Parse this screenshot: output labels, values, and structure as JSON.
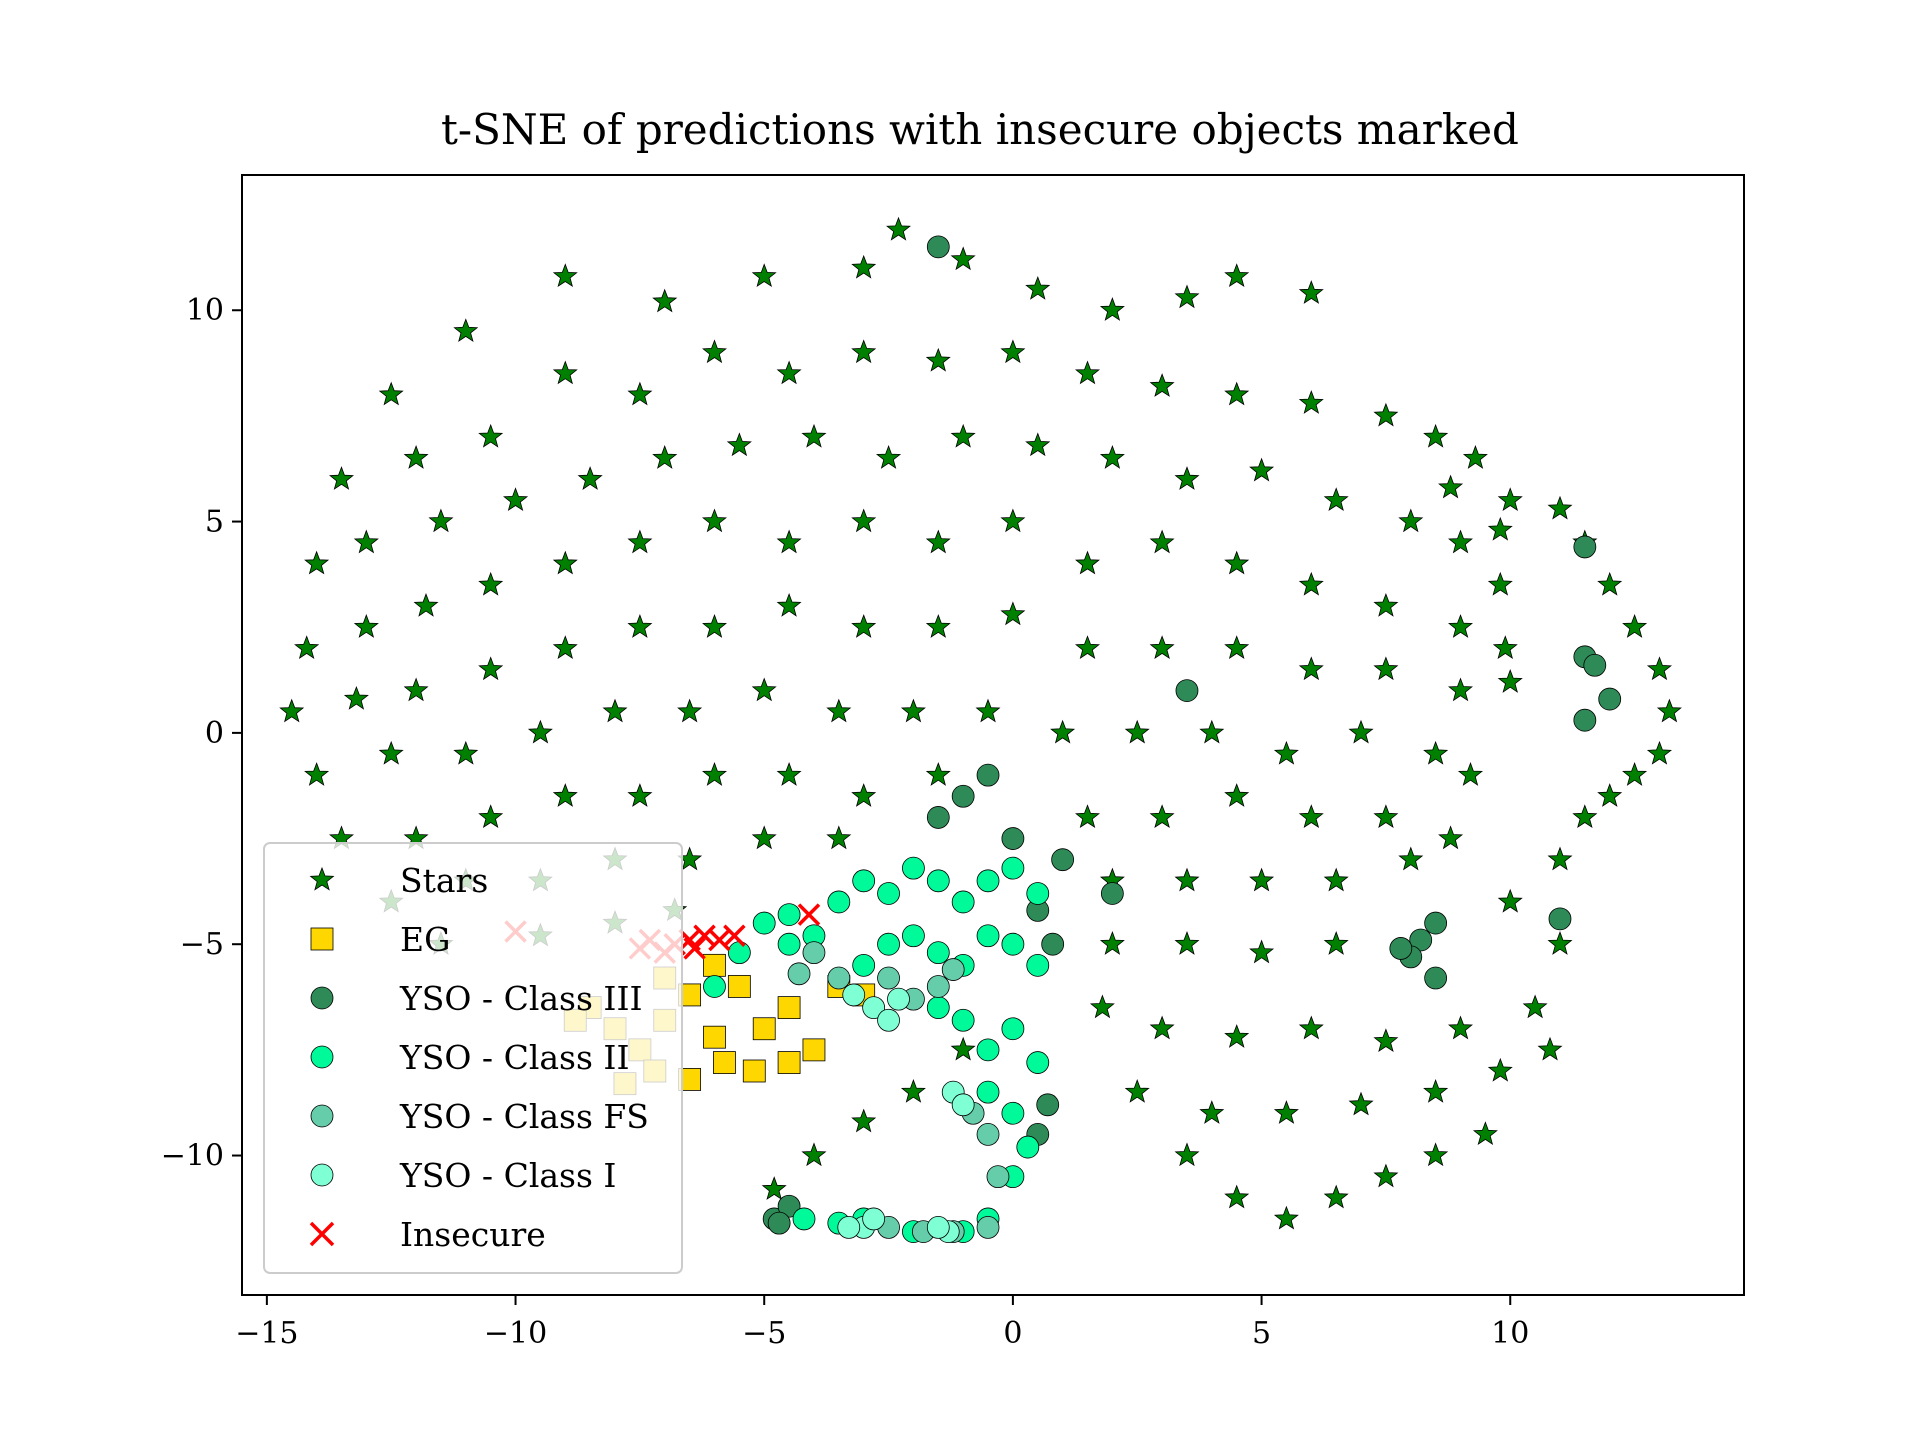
{
  "chart_data": {
    "type": "scatter",
    "title": "t-SNE of predictions with insecure objects marked",
    "xlabel": "",
    "ylabel": "",
    "xlim": [
      -15.5,
      14.7
    ],
    "ylim": [
      -13.3,
      13.2
    ],
    "xticks": [
      -15,
      -10,
      -5,
      0,
      5,
      10
    ],
    "yticks": [
      -10,
      -5,
      0,
      5,
      10
    ],
    "grid": false,
    "legend_position": "lower-left",
    "series": [
      {
        "name": "Stars",
        "marker": "star",
        "color": "#008000",
        "points": [
          [
            -12.5,
            8.0
          ],
          [
            -11.0,
            9.5
          ],
          [
            -9.0,
            10.8
          ],
          [
            -7.0,
            10.2
          ],
          [
            -5.0,
            10.8
          ],
          [
            -3.0,
            11.0
          ],
          [
            -2.3,
            11.9
          ],
          [
            -1.0,
            11.2
          ],
          [
            0.5,
            10.5
          ],
          [
            2.0,
            10.0
          ],
          [
            3.5,
            10.3
          ],
          [
            4.5,
            10.8
          ],
          [
            6.0,
            10.4
          ],
          [
            -13.5,
            6.0
          ],
          [
            -12.0,
            6.5
          ],
          [
            -10.5,
            7.0
          ],
          [
            -9.0,
            8.5
          ],
          [
            -7.5,
            8.0
          ],
          [
            -6.0,
            9.0
          ],
          [
            -4.5,
            8.5
          ],
          [
            -3.0,
            9.0
          ],
          [
            -1.5,
            8.8
          ],
          [
            0.0,
            9.0
          ],
          [
            1.5,
            8.5
          ],
          [
            3.0,
            8.2
          ],
          [
            4.5,
            8.0
          ],
          [
            6.0,
            7.8
          ],
          [
            7.5,
            7.5
          ],
          [
            8.5,
            7.0
          ],
          [
            9.3,
            6.5
          ],
          [
            8.8,
            5.8
          ],
          [
            -14.0,
            4.0
          ],
          [
            -13.0,
            4.5
          ],
          [
            -11.5,
            5.0
          ],
          [
            -10.0,
            5.5
          ],
          [
            -8.5,
            6.0
          ],
          [
            -7.0,
            6.5
          ],
          [
            -5.5,
            6.8
          ],
          [
            -4.0,
            7.0
          ],
          [
            -2.5,
            6.5
          ],
          [
            -1.0,
            7.0
          ],
          [
            0.5,
            6.8
          ],
          [
            2.0,
            6.5
          ],
          [
            3.5,
            6.0
          ],
          [
            5.0,
            6.2
          ],
          [
            6.5,
            5.5
          ],
          [
            8.0,
            5.0
          ],
          [
            9.0,
            4.5
          ],
          [
            -14.2,
            2.0
          ],
          [
            -13.0,
            2.5
          ],
          [
            -11.8,
            3.0
          ],
          [
            -10.5,
            3.5
          ],
          [
            -9.0,
            4.0
          ],
          [
            -7.5,
            4.5
          ],
          [
            -6.0,
            5.0
          ],
          [
            -4.5,
            4.5
          ],
          [
            -3.0,
            5.0
          ],
          [
            -1.5,
            4.5
          ],
          [
            0.0,
            5.0
          ],
          [
            1.5,
            4.0
          ],
          [
            3.0,
            4.5
          ],
          [
            4.5,
            4.0
          ],
          [
            6.0,
            3.5
          ],
          [
            7.5,
            3.0
          ],
          [
            9.0,
            2.5
          ],
          [
            -14.5,
            0.5
          ],
          [
            -13.2,
            0.8
          ],
          [
            -12.0,
            1.0
          ],
          [
            -10.5,
            1.5
          ],
          [
            -9.0,
            2.0
          ],
          [
            -7.5,
            2.5
          ],
          [
            -6.0,
            2.5
          ],
          [
            -4.5,
            3.0
          ],
          [
            -3.0,
            2.5
          ],
          [
            -1.5,
            2.5
          ],
          [
            0.0,
            2.8
          ],
          [
            1.5,
            2.0
          ],
          [
            3.0,
            2.0
          ],
          [
            4.5,
            2.0
          ],
          [
            6.0,
            1.5
          ],
          [
            7.5,
            1.5
          ],
          [
            9.0,
            1.0
          ],
          [
            -14.0,
            -1.0
          ],
          [
            -12.5,
            -0.5
          ],
          [
            -11.0,
            -0.5
          ],
          [
            -9.5,
            0.0
          ],
          [
            -8.0,
            0.5
          ],
          [
            -6.5,
            0.5
          ],
          [
            -5.0,
            1.0
          ],
          [
            -3.5,
            0.5
          ],
          [
            -2.0,
            0.5
          ],
          [
            -0.5,
            0.5
          ],
          [
            1.0,
            0.0
          ],
          [
            2.5,
            0.0
          ],
          [
            4.0,
            0.0
          ],
          [
            5.5,
            -0.5
          ],
          [
            7.0,
            0.0
          ],
          [
            8.5,
            -0.5
          ],
          [
            9.2,
            -1.0
          ],
          [
            -13.5,
            -2.5
          ],
          [
            -12.0,
            -2.5
          ],
          [
            -10.5,
            -2.0
          ],
          [
            -9.0,
            -1.5
          ],
          [
            -7.5,
            -1.5
          ],
          [
            -6.0,
            -1.0
          ],
          [
            -4.5,
            -1.0
          ],
          [
            -3.0,
            -1.5
          ],
          [
            -1.5,
            -1.0
          ],
          [
            1.5,
            -2.0
          ],
          [
            3.0,
            -2.0
          ],
          [
            4.5,
            -1.5
          ],
          [
            6.0,
            -2.0
          ],
          [
            7.5,
            -2.0
          ],
          [
            8.8,
            -2.5
          ],
          [
            -12.5,
            -4.0
          ],
          [
            -11.0,
            -3.5
          ],
          [
            -9.5,
            -3.5
          ],
          [
            -8.0,
            -3.0
          ],
          [
            -6.5,
            -3.0
          ],
          [
            -5.0,
            -2.5
          ],
          [
            -3.5,
            -2.5
          ],
          [
            2.0,
            -3.5
          ],
          [
            3.5,
            -3.5
          ],
          [
            5.0,
            -3.5
          ],
          [
            6.5,
            -3.5
          ],
          [
            8.0,
            -3.0
          ],
          [
            -11.5,
            -5.0
          ],
          [
            -9.5,
            -4.8
          ],
          [
            -8.0,
            -4.5
          ],
          [
            -6.8,
            -4.2
          ],
          [
            2.0,
            -5.0
          ],
          [
            3.5,
            -5.0
          ],
          [
            5.0,
            -5.2
          ],
          [
            6.5,
            -5.0
          ],
          [
            1.8,
            -6.5
          ],
          [
            3.0,
            -7.0
          ],
          [
            4.5,
            -7.2
          ],
          [
            6.0,
            -7.0
          ],
          [
            7.5,
            -7.3
          ],
          [
            9.0,
            -7.0
          ],
          [
            10.5,
            -6.5
          ],
          [
            11.0,
            -5.0
          ],
          [
            2.5,
            -8.5
          ],
          [
            4.0,
            -9.0
          ],
          [
            5.5,
            -9.0
          ],
          [
            7.0,
            -8.8
          ],
          [
            8.5,
            -8.5
          ],
          [
            9.8,
            -8.0
          ],
          [
            10.8,
            -7.5
          ],
          [
            3.5,
            -10.0
          ],
          [
            4.5,
            -11.0
          ],
          [
            5.5,
            -11.5
          ],
          [
            6.5,
            -11.0
          ],
          [
            7.5,
            -10.5
          ],
          [
            8.5,
            -10.0
          ],
          [
            9.5,
            -9.5
          ],
          [
            10.0,
            -4.0
          ],
          [
            11.0,
            -3.0
          ],
          [
            11.5,
            -2.0
          ],
          [
            12.0,
            -1.5
          ],
          [
            12.5,
            -1.0
          ],
          [
            13.0,
            -0.5
          ],
          [
            13.2,
            0.5
          ],
          [
            13.0,
            1.5
          ],
          [
            12.5,
            2.5
          ],
          [
            12.0,
            3.5
          ],
          [
            11.5,
            4.5
          ],
          [
            11.0,
            5.3
          ],
          [
            10.0,
            5.5
          ],
          [
            9.8,
            4.8
          ],
          [
            9.8,
            3.5
          ],
          [
            9.9,
            2.0
          ],
          [
            10.0,
            1.2
          ],
          [
            -4.8,
            -10.8
          ],
          [
            -4.0,
            -10.0
          ],
          [
            -3.0,
            -9.2
          ],
          [
            -2.0,
            -8.5
          ],
          [
            -1.0,
            -7.5
          ]
        ]
      },
      {
        "name": "EG",
        "marker": "square",
        "color": "#ffd700",
        "points": [
          [
            -8.5,
            -6.5
          ],
          [
            -8.0,
            -7.0
          ],
          [
            -7.5,
            -7.5
          ],
          [
            -7.0,
            -6.8
          ],
          [
            -6.5,
            -6.2
          ],
          [
            -6.0,
            -7.2
          ],
          [
            -5.5,
            -6.0
          ],
          [
            -5.0,
            -7.0
          ],
          [
            -4.5,
            -6.5
          ],
          [
            -4.0,
            -7.5
          ],
          [
            -3.5,
            -6.0
          ],
          [
            -3.0,
            -6.2
          ],
          [
            -7.8,
            -8.3
          ],
          [
            -7.2,
            -8.0
          ],
          [
            -6.5,
            -8.2
          ],
          [
            -5.8,
            -7.8
          ],
          [
            -8.8,
            -6.8
          ],
          [
            -7.0,
            -5.8
          ],
          [
            -6.0,
            -5.5
          ],
          [
            -5.2,
            -8.0
          ],
          [
            -4.5,
            -7.8
          ]
        ]
      },
      {
        "name": "YSO - Class III",
        "marker": "circle",
        "color": "#2e8b57",
        "points": [
          [
            -1.5,
            11.5
          ],
          [
            3.5,
            1.0
          ],
          [
            11.5,
            4.4
          ],
          [
            11.5,
            1.8
          ],
          [
            11.7,
            1.6
          ],
          [
            11.5,
            0.3
          ],
          [
            12.0,
            0.8
          ],
          [
            -1.5,
            -2.0
          ],
          [
            -1.0,
            -1.5
          ],
          [
            -0.5,
            -1.0
          ],
          [
            0.0,
            -2.5
          ],
          [
            1.0,
            -3.0
          ],
          [
            2.0,
            -3.8
          ],
          [
            8.5,
            -4.5
          ],
          [
            8.2,
            -4.9
          ],
          [
            8.0,
            -5.3
          ],
          [
            7.8,
            -5.1
          ],
          [
            8.5,
            -5.8
          ],
          [
            11.0,
            -4.4
          ],
          [
            -4.8,
            -11.5
          ],
          [
            -4.5,
            -11.2
          ],
          [
            -4.7,
            -11.6
          ],
          [
            0.5,
            -9.5
          ],
          [
            0.7,
            -8.8
          ],
          [
            0.5,
            -4.2
          ],
          [
            0.8,
            -5.0
          ]
        ]
      },
      {
        "name": "YSO - Class II",
        "marker": "circle",
        "color": "#00fa9a",
        "points": [
          [
            -5.0,
            -4.5
          ],
          [
            -4.5,
            -4.3
          ],
          [
            -4.0,
            -4.8
          ],
          [
            -3.5,
            -4.0
          ],
          [
            -3.0,
            -3.5
          ],
          [
            -2.5,
            -3.8
          ],
          [
            -2.0,
            -3.2
          ],
          [
            -1.5,
            -3.5
          ],
          [
            -1.0,
            -4.0
          ],
          [
            -0.5,
            -3.5
          ],
          [
            0.0,
            -3.2
          ],
          [
            0.5,
            -3.8
          ],
          [
            -3.0,
            -5.5
          ],
          [
            -2.5,
            -5.0
          ],
          [
            -2.0,
            -4.8
          ],
          [
            -1.5,
            -5.2
          ],
          [
            -1.0,
            -5.5
          ],
          [
            -0.5,
            -4.8
          ],
          [
            0.0,
            -5.0
          ],
          [
            0.5,
            -5.5
          ],
          [
            -1.5,
            -6.5
          ],
          [
            -1.0,
            -6.8
          ],
          [
            -0.5,
            -7.5
          ],
          [
            0.0,
            -7.0
          ],
          [
            0.5,
            -7.8
          ],
          [
            -0.5,
            -8.5
          ],
          [
            0.0,
            -9.0
          ],
          [
            0.3,
            -9.8
          ],
          [
            0.0,
            -10.5
          ],
          [
            -0.5,
            -11.5
          ],
          [
            -1.0,
            -11.8
          ],
          [
            -2.0,
            -11.8
          ],
          [
            -3.0,
            -11.5
          ],
          [
            -3.5,
            -11.6
          ],
          [
            -4.2,
            -11.5
          ],
          [
            -6.0,
            -6.0
          ],
          [
            -5.5,
            -5.2
          ],
          [
            -4.5,
            -5.0
          ]
        ]
      },
      {
        "name": "YSO - Class FS",
        "marker": "circle",
        "color": "#66cdaa",
        "points": [
          [
            -4.0,
            -5.2
          ],
          [
            -3.5,
            -5.8
          ],
          [
            -2.5,
            -5.8
          ],
          [
            -2.0,
            -6.3
          ],
          [
            -1.5,
            -6.0
          ],
          [
            -1.2,
            -5.6
          ],
          [
            -0.8,
            -9.0
          ],
          [
            -0.5,
            -9.5
          ],
          [
            -0.3,
            -10.5
          ],
          [
            -0.5,
            -11.7
          ],
          [
            -1.2,
            -11.8
          ],
          [
            -1.8,
            -11.8
          ],
          [
            -2.5,
            -11.7
          ],
          [
            -4.3,
            -5.7
          ]
        ]
      },
      {
        "name": "YSO - Class I",
        "marker": "circle",
        "color": "#7fffd4",
        "points": [
          [
            -3.2,
            -6.2
          ],
          [
            -2.8,
            -6.5
          ],
          [
            -2.5,
            -6.8
          ],
          [
            -2.3,
            -6.3
          ],
          [
            -3.0,
            -11.7
          ],
          [
            -2.8,
            -11.5
          ],
          [
            -3.3,
            -11.7
          ],
          [
            -1.2,
            -8.5
          ],
          [
            -1.0,
            -8.8
          ],
          [
            -1.3,
            -11.8
          ],
          [
            -1.5,
            -11.7
          ]
        ]
      },
      {
        "name": "Insecure",
        "marker": "x",
        "color": "#ff0000",
        "points": [
          [
            -10.0,
            -4.7
          ],
          [
            -7.5,
            -5.1
          ],
          [
            -7.3,
            -4.9
          ],
          [
            -7.0,
            -5.2
          ],
          [
            -6.8,
            -5.0
          ],
          [
            -6.5,
            -4.9
          ],
          [
            -6.4,
            -5.1
          ],
          [
            -6.2,
            -4.8
          ],
          [
            -5.9,
            -4.9
          ],
          [
            -5.6,
            -4.8
          ],
          [
            -4.1,
            -4.3
          ]
        ]
      }
    ]
  }
}
